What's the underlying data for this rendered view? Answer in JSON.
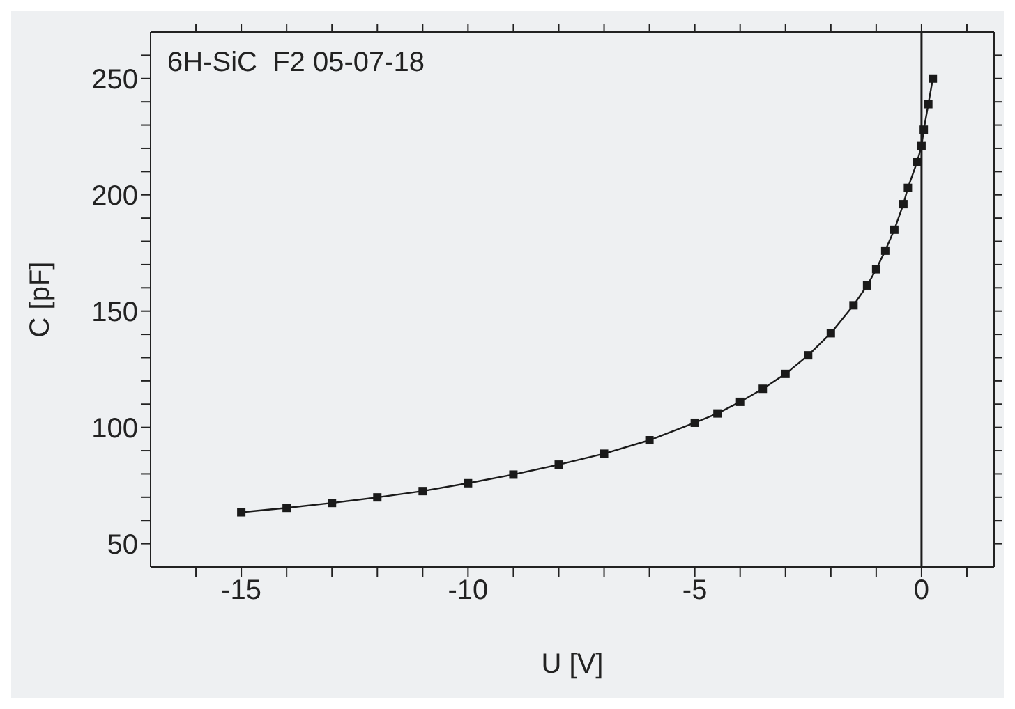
{
  "chart_data": {
    "type": "line",
    "xlabel": "U [V]",
    "ylabel": "C [pF]",
    "annotations": [
      "6H-SiC  F2 05-07-18"
    ],
    "x": [
      -15,
      -14,
      -13,
      -12,
      -11,
      -10,
      -9,
      -8,
      -7,
      -6,
      -5,
      -4.5,
      -4,
      -3.5,
      -3,
      -2.5,
      -2,
      -1.5,
      -1.2,
      -1,
      -0.8,
      -0.6,
      -0.4,
      -0.3,
      -0.1,
      0,
      0.05,
      0.15,
      0.25
    ],
    "series": [
      {
        "color": "#1a1a1a",
        "values": [
          63.5,
          65.4,
          67.5,
          69.9,
          72.6,
          76,
          79.7,
          84,
          88.7,
          94.5,
          102,
          106,
          111,
          116.6,
          123,
          131,
          140.5,
          152.5,
          161,
          168,
          176,
          185,
          196,
          203,
          214,
          221,
          228,
          239,
          250
        ]
      }
    ],
    "xlim": [
      -17,
      1.6
    ],
    "xticks": [
      {
        "value": -16,
        "label": null
      },
      -15,
      {
        "value": -14,
        "label": null
      },
      {
        "value": -13,
        "label": null
      },
      {
        "value": -12,
        "label": null
      },
      {
        "value": -11,
        "label": null
      },
      -10,
      {
        "value": -9,
        "label": null
      },
      {
        "value": -8,
        "label": null
      },
      {
        "value": -7,
        "label": null
      },
      {
        "value": -6,
        "label": null
      },
      -5,
      {
        "value": -4,
        "label": null
      },
      {
        "value": -3,
        "label": null
      },
      {
        "value": -2,
        "label": null
      },
      {
        "value": -1,
        "label": null
      },
      0,
      {
        "value": 1,
        "label": null
      }
    ],
    "ylim": [
      40,
      270
    ],
    "yticks": [
      50,
      {
        "value": 60,
        "label": null
      },
      {
        "value": 70,
        "label": null
      },
      {
        "value": 80,
        "label": null
      },
      {
        "value": 90,
        "label": null
      },
      100,
      {
        "value": 110,
        "label": null
      },
      {
        "value": 120,
        "label": null
      },
      {
        "value": 130,
        "label": null
      },
      {
        "value": 140,
        "label": null
      },
      150,
      {
        "value": 160,
        "label": null
      },
      {
        "value": 170,
        "label": null
      },
      {
        "value": 180,
        "label": null
      },
      {
        "value": 190,
        "label": null
      },
      200,
      {
        "value": 210,
        "label": null
      },
      {
        "value": 220,
        "label": null
      },
      {
        "value": 230,
        "label": null
      },
      {
        "value": 240,
        "label": null
      },
      250,
      {
        "value": 260,
        "label": null
      }
    ],
    "ref_lines": [
      {
        "axis": "x",
        "value": 0,
        "color": "#1a1a1a"
      }
    ],
    "marker": "square",
    "line_style": "solid",
    "grid": false,
    "legend": false
  }
}
